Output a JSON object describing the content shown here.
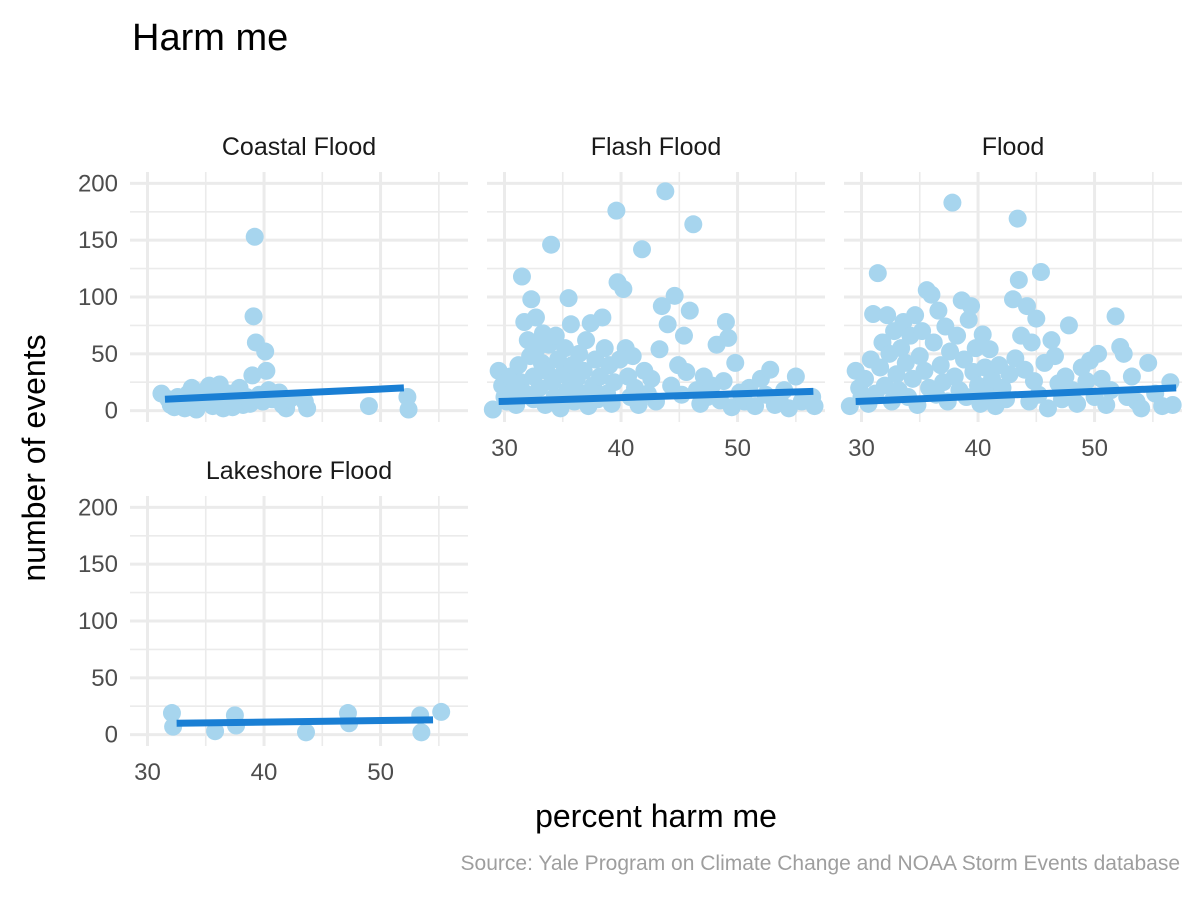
{
  "chart_data": {
    "type": "scatter",
    "title": "Harm me",
    "xlabel": "percent harm me",
    "ylabel": "number of events",
    "caption": "Source: Yale Program on Climate Change and NOAA Storm Events database",
    "xlim": [
      28.5,
      57.5
    ],
    "ylim": [
      -10,
      210
    ],
    "x_ticks": [
      30,
      40,
      50
    ],
    "y_ticks": [
      0,
      50,
      100,
      150,
      200
    ],
    "grid": true,
    "legend": "none",
    "point_color": "#a7d5ee",
    "line_color": "#1a7fd4",
    "panels": [
      {
        "name": "Coastal Flood",
        "trend": [
          [
            31.5,
            10
          ],
          [
            52.0,
            20
          ]
        ],
        "points": [
          [
            31.2,
            15
          ],
          [
            31.8,
            10
          ],
          [
            32.0,
            5
          ],
          [
            32.3,
            3
          ],
          [
            32.6,
            12
          ],
          [
            33.0,
            8
          ],
          [
            33.2,
            2
          ],
          [
            33.5,
            15
          ],
          [
            33.8,
            20
          ],
          [
            34.0,
            6
          ],
          [
            34.2,
            1
          ],
          [
            34.6,
            10
          ],
          [
            35.0,
            18
          ],
          [
            35.3,
            22
          ],
          [
            35.6,
            4
          ],
          [
            35.9,
            12
          ],
          [
            36.2,
            23
          ],
          [
            36.5,
            2
          ],
          [
            36.8,
            9
          ],
          [
            37.0,
            15
          ],
          [
            37.3,
            3
          ],
          [
            37.6,
            8
          ],
          [
            37.9,
            20
          ],
          [
            38.2,
            5
          ],
          [
            38.5,
            12
          ],
          [
            38.8,
            6
          ],
          [
            39.0,
            31
          ],
          [
            39.1,
            83
          ],
          [
            39.2,
            153
          ],
          [
            39.3,
            60
          ],
          [
            39.6,
            14
          ],
          [
            39.9,
            8
          ],
          [
            40.1,
            52
          ],
          [
            40.2,
            35
          ],
          [
            40.4,
            18
          ],
          [
            40.7,
            10
          ],
          [
            41.0,
            14
          ],
          [
            41.3,
            16
          ],
          [
            41.6,
            5
          ],
          [
            41.9,
            2
          ],
          [
            42.2,
            10
          ],
          [
            43.5,
            8
          ],
          [
            43.7,
            2
          ],
          [
            49.0,
            4
          ],
          [
            52.3,
            12
          ],
          [
            52.4,
            1
          ]
        ]
      },
      {
        "name": "Flash Flood",
        "trend": [
          [
            29.5,
            8
          ],
          [
            56.5,
            17
          ]
        ],
        "points": [
          [
            29.0,
            1
          ],
          [
            29.5,
            35
          ],
          [
            29.8,
            22
          ],
          [
            30.0,
            12
          ],
          [
            30.2,
            8
          ],
          [
            30.5,
            30
          ],
          [
            30.8,
            18
          ],
          [
            31.0,
            5
          ],
          [
            31.2,
            40
          ],
          [
            31.4,
            25
          ],
          [
            31.5,
            118
          ],
          [
            31.7,
            78
          ],
          [
            31.8,
            15
          ],
          [
            32.0,
            62
          ],
          [
            32.2,
            48
          ],
          [
            32.3,
            98
          ],
          [
            32.5,
            30
          ],
          [
            32.5,
            10
          ],
          [
            32.7,
            82
          ],
          [
            32.8,
            55
          ],
          [
            33.0,
            20
          ],
          [
            33.2,
            42
          ],
          [
            33.3,
            68
          ],
          [
            33.5,
            5
          ],
          [
            33.6,
            35
          ],
          [
            33.8,
            58
          ],
          [
            34.0,
            146
          ],
          [
            34.1,
            25
          ],
          [
            34.3,
            12
          ],
          [
            34.4,
            66
          ],
          [
            34.6,
            45
          ],
          [
            34.8,
            2
          ],
          [
            35.0,
            32
          ],
          [
            35.2,
            55
          ],
          [
            35.4,
            18
          ],
          [
            35.5,
            99
          ],
          [
            35.7,
            76
          ],
          [
            35.8,
            40
          ],
          [
            36.0,
            8
          ],
          [
            36.2,
            28
          ],
          [
            36.4,
            50
          ],
          [
            36.6,
            15
          ],
          [
            36.8,
            35
          ],
          [
            37.0,
            62
          ],
          [
            37.2,
            4
          ],
          [
            37.4,
            77
          ],
          [
            37.6,
            22
          ],
          [
            37.8,
            45
          ],
          [
            38.0,
            10
          ],
          [
            38.2,
            30
          ],
          [
            38.4,
            82
          ],
          [
            38.6,
            55
          ],
          [
            38.8,
            15
          ],
          [
            39.0,
            40
          ],
          [
            39.2,
            6
          ],
          [
            39.4,
            25
          ],
          [
            39.6,
            176
          ],
          [
            39.7,
            113
          ],
          [
            39.9,
            45
          ],
          [
            40.2,
            107
          ],
          [
            40.4,
            55
          ],
          [
            40.6,
            30
          ],
          [
            40.8,
            12
          ],
          [
            41.0,
            48
          ],
          [
            41.2,
            20
          ],
          [
            41.5,
            5
          ],
          [
            41.8,
            142
          ],
          [
            42.0,
            35
          ],
          [
            42.3,
            15
          ],
          [
            42.6,
            28
          ],
          [
            43.0,
            8
          ],
          [
            43.3,
            54
          ],
          [
            43.5,
            92
          ],
          [
            43.8,
            193
          ],
          [
            44.0,
            76
          ],
          [
            44.3,
            22
          ],
          [
            44.6,
            101
          ],
          [
            44.9,
            40
          ],
          [
            45.2,
            14
          ],
          [
            45.4,
            66
          ],
          [
            45.6,
            34
          ],
          [
            45.9,
            88
          ],
          [
            46.2,
            164
          ],
          [
            46.5,
            18
          ],
          [
            46.8,
            6
          ],
          [
            47.1,
            30
          ],
          [
            47.4,
            12
          ],
          [
            47.8,
            22
          ],
          [
            48.2,
            58
          ],
          [
            48.5,
            9
          ],
          [
            48.8,
            26
          ],
          [
            49.0,
            78
          ],
          [
            49.2,
            64
          ],
          [
            49.5,
            3
          ],
          [
            49.8,
            42
          ],
          [
            50.2,
            16
          ],
          [
            50.6,
            8
          ],
          [
            51.0,
            20
          ],
          [
            51.5,
            4
          ],
          [
            52.0,
            28
          ],
          [
            52.4,
            14
          ],
          [
            52.8,
            36
          ],
          [
            53.2,
            5
          ],
          [
            53.6,
            10
          ],
          [
            54.0,
            18
          ],
          [
            54.4,
            2
          ],
          [
            55.0,
            30
          ],
          [
            55.5,
            8
          ],
          [
            56.4,
            12
          ],
          [
            56.6,
            4
          ]
        ]
      },
      {
        "name": "Flood",
        "trend": [
          [
            29.5,
            8
          ],
          [
            57.0,
            20
          ]
        ],
        "points": [
          [
            29.0,
            4
          ],
          [
            29.5,
            35
          ],
          [
            29.8,
            20
          ],
          [
            30.0,
            12
          ],
          [
            30.3,
            28
          ],
          [
            30.6,
            6
          ],
          [
            30.8,
            45
          ],
          [
            31.0,
            85
          ],
          [
            31.2,
            15
          ],
          [
            31.4,
            121
          ],
          [
            31.6,
            38
          ],
          [
            31.8,
            60
          ],
          [
            32.0,
            22
          ],
          [
            32.2,
            84
          ],
          [
            32.4,
            50
          ],
          [
            32.6,
            8
          ],
          [
            32.8,
            70
          ],
          [
            33.0,
            32
          ],
          [
            33.2,
            18
          ],
          [
            33.4,
            55
          ],
          [
            33.6,
            78
          ],
          [
            33.8,
            42
          ],
          [
            34.0,
            12
          ],
          [
            34.2,
            66
          ],
          [
            34.4,
            28
          ],
          [
            34.6,
            84
          ],
          [
            34.8,
            5
          ],
          [
            35.0,
            48
          ],
          [
            35.2,
            70
          ],
          [
            35.4,
            35
          ],
          [
            35.6,
            106
          ],
          [
            35.8,
            20
          ],
          [
            36.0,
            102
          ],
          [
            36.2,
            60
          ],
          [
            36.4,
            14
          ],
          [
            36.6,
            88
          ],
          [
            36.8,
            40
          ],
          [
            37.0,
            25
          ],
          [
            37.2,
            74
          ],
          [
            37.4,
            8
          ],
          [
            37.6,
            52
          ],
          [
            37.8,
            183
          ],
          [
            38.0,
            30
          ],
          [
            38.2,
            66
          ],
          [
            38.4,
            18
          ],
          [
            38.6,
            97
          ],
          [
            38.8,
            45
          ],
          [
            39.0,
            12
          ],
          [
            39.2,
            80
          ],
          [
            39.4,
            92
          ],
          [
            39.6,
            34
          ],
          [
            39.8,
            55
          ],
          [
            40.0,
            22
          ],
          [
            40.2,
            6
          ],
          [
            40.4,
            67
          ],
          [
            40.6,
            38
          ],
          [
            40.8,
            15
          ],
          [
            41.0,
            54
          ],
          [
            41.2,
            28
          ],
          [
            41.5,
            4
          ],
          [
            41.8,
            40
          ],
          [
            42.1,
            20
          ],
          [
            42.4,
            10
          ],
          [
            42.7,
            32
          ],
          [
            43.0,
            98
          ],
          [
            43.2,
            46
          ],
          [
            43.4,
            169
          ],
          [
            43.5,
            115
          ],
          [
            43.7,
            66
          ],
          [
            44.0,
            36
          ],
          [
            44.2,
            92
          ],
          [
            44.4,
            8
          ],
          [
            44.6,
            60
          ],
          [
            44.8,
            26
          ],
          [
            45.0,
            81
          ],
          [
            45.2,
            14
          ],
          [
            45.4,
            122
          ],
          [
            45.7,
            42
          ],
          [
            46.0,
            2
          ],
          [
            46.3,
            62
          ],
          [
            46.6,
            48
          ],
          [
            46.9,
            24
          ],
          [
            47.2,
            10
          ],
          [
            47.5,
            30
          ],
          [
            47.8,
            75
          ],
          [
            48.1,
            18
          ],
          [
            48.5,
            6
          ],
          [
            48.9,
            38
          ],
          [
            49.3,
            26
          ],
          [
            49.6,
            44
          ],
          [
            50.0,
            12
          ],
          [
            50.3,
            50
          ],
          [
            50.6,
            28
          ],
          [
            51.0,
            5
          ],
          [
            51.4,
            18
          ],
          [
            51.8,
            83
          ],
          [
            52.2,
            56
          ],
          [
            52.5,
            50
          ],
          [
            52.8,
            12
          ],
          [
            53.2,
            30
          ],
          [
            53.6,
            8
          ],
          [
            54.0,
            2
          ],
          [
            54.6,
            42
          ],
          [
            55.2,
            15
          ],
          [
            55.8,
            4
          ],
          [
            56.5,
            25
          ],
          [
            56.7,
            5
          ]
        ]
      },
      {
        "name": "Lakeshore Flood",
        "trend": [
          [
            32.5,
            10
          ],
          [
            54.5,
            13
          ]
        ],
        "points": [
          [
            32.1,
            19
          ],
          [
            32.2,
            7
          ],
          [
            35.8,
            3
          ],
          [
            37.5,
            17
          ],
          [
            37.6,
            8
          ],
          [
            43.6,
            2
          ],
          [
            47.2,
            19
          ],
          [
            47.3,
            10
          ],
          [
            53.4,
            17
          ],
          [
            53.5,
            2
          ],
          [
            55.2,
            20
          ]
        ]
      }
    ]
  }
}
